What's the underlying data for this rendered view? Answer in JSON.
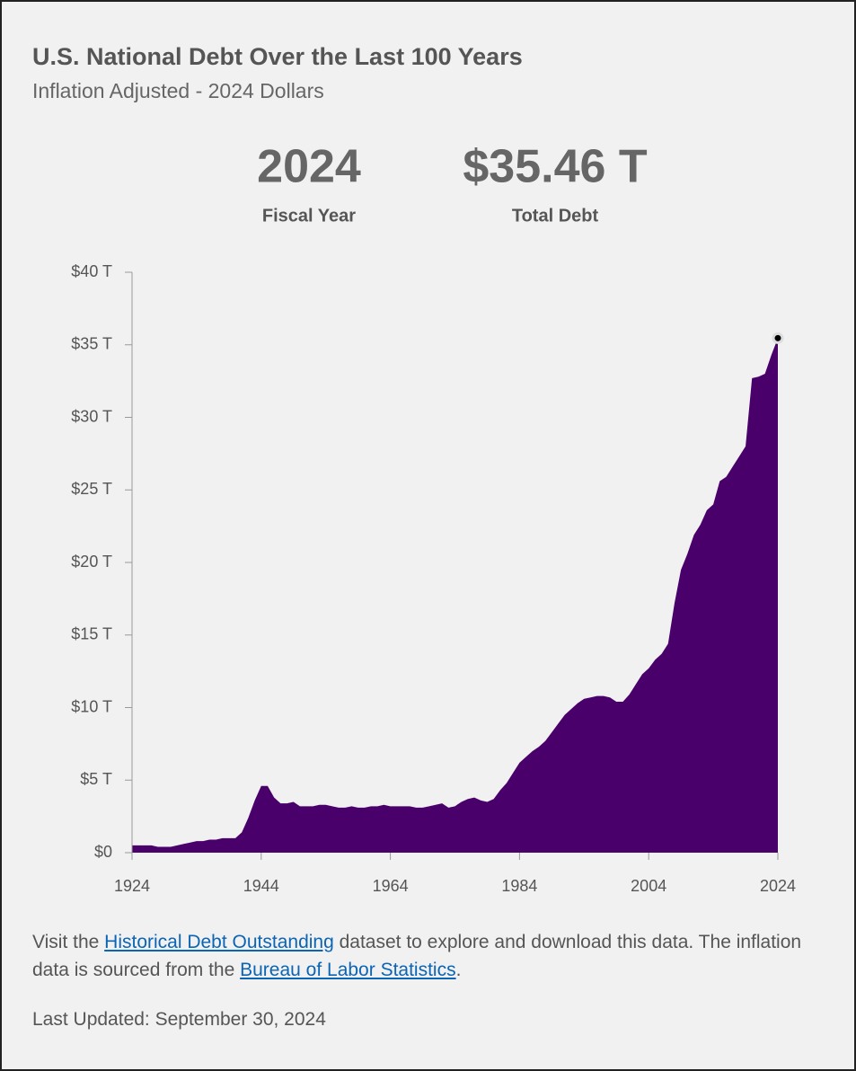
{
  "chart_data": {
    "type": "area",
    "title": "U.S. National Debt Over the Last 100 Years",
    "subtitle": "Inflation Adjusted - 2024 Dollars",
    "highlight": {
      "year": "2024",
      "year_label": "Fiscal Year",
      "value": "$35.46 T",
      "value_label": "Total Debt"
    },
    "x": [
      1924,
      1925,
      1926,
      1927,
      1928,
      1929,
      1930,
      1931,
      1932,
      1933,
      1934,
      1935,
      1936,
      1937,
      1938,
      1939,
      1940,
      1941,
      1942,
      1943,
      1944,
      1945,
      1946,
      1947,
      1948,
      1949,
      1950,
      1951,
      1952,
      1953,
      1954,
      1955,
      1956,
      1957,
      1958,
      1959,
      1960,
      1961,
      1962,
      1963,
      1964,
      1965,
      1966,
      1967,
      1968,
      1969,
      1970,
      1971,
      1972,
      1973,
      1974,
      1975,
      1976,
      1977,
      1978,
      1979,
      1980,
      1981,
      1982,
      1983,
      1984,
      1985,
      1986,
      1987,
      1988,
      1989,
      1990,
      1991,
      1992,
      1993,
      1994,
      1995,
      1996,
      1997,
      1998,
      1999,
      2000,
      2001,
      2002,
      2003,
      2004,
      2005,
      2006,
      2007,
      2008,
      2009,
      2010,
      2011,
      2012,
      2013,
      2014,
      2015,
      2016,
      2017,
      2018,
      2019,
      2020,
      2021,
      2022,
      2023,
      2024
    ],
    "values": [
      0.5,
      0.5,
      0.5,
      0.5,
      0.4,
      0.4,
      0.4,
      0.5,
      0.6,
      0.7,
      0.8,
      0.8,
      0.9,
      0.9,
      1.0,
      1.0,
      1.0,
      1.4,
      2.4,
      3.6,
      4.6,
      4.6,
      3.8,
      3.4,
      3.4,
      3.5,
      3.2,
      3.2,
      3.2,
      3.3,
      3.3,
      3.2,
      3.1,
      3.1,
      3.2,
      3.1,
      3.1,
      3.2,
      3.2,
      3.3,
      3.2,
      3.2,
      3.2,
      3.2,
      3.1,
      3.1,
      3.2,
      3.3,
      3.4,
      3.1,
      3.2,
      3.5,
      3.7,
      3.8,
      3.6,
      3.5,
      3.7,
      4.3,
      4.8,
      5.5,
      6.2,
      6.6,
      7.0,
      7.3,
      7.7,
      8.3,
      8.9,
      9.5,
      9.9,
      10.3,
      10.6,
      10.7,
      10.8,
      10.8,
      10.7,
      10.4,
      10.4,
      10.9,
      11.6,
      12.3,
      12.7,
      13.3,
      13.7,
      14.4,
      17.2,
      19.5,
      20.6,
      21.9,
      22.6,
      23.6,
      24.0,
      25.6,
      25.9,
      26.6,
      27.3,
      28.0,
      32.7,
      32.8,
      33.0,
      34.3,
      35.46
    ],
    "color": "#4a006b",
    "xlim": [
      1924,
      2024
    ],
    "xticks": [
      1924,
      1944,
      1964,
      1984,
      2004,
      2024
    ],
    "ylim": [
      0,
      40
    ],
    "yticks": [
      {
        "value": 0,
        "label": "$0"
      },
      {
        "value": 5,
        "label": "$5 T"
      },
      {
        "value": 10,
        "label": "$10 T"
      },
      {
        "value": 15,
        "label": "$15 T"
      },
      {
        "value": 20,
        "label": "$20 T"
      },
      {
        "value": 25,
        "label": "$25 T"
      },
      {
        "value": 30,
        "label": "$30 T"
      },
      {
        "value": 35,
        "label": "$35 T"
      },
      {
        "value": 40,
        "label": "$40 T"
      }
    ]
  },
  "footer": {
    "text_1": "Visit the ",
    "link_1": "Historical Debt Outstanding",
    "text_2": " dataset to explore and download this data. The inflation data is sourced from the ",
    "link_2": "Bureau of Labor Statistics",
    "text_3": ".",
    "updated": "Last Updated: September 30, 2024"
  }
}
